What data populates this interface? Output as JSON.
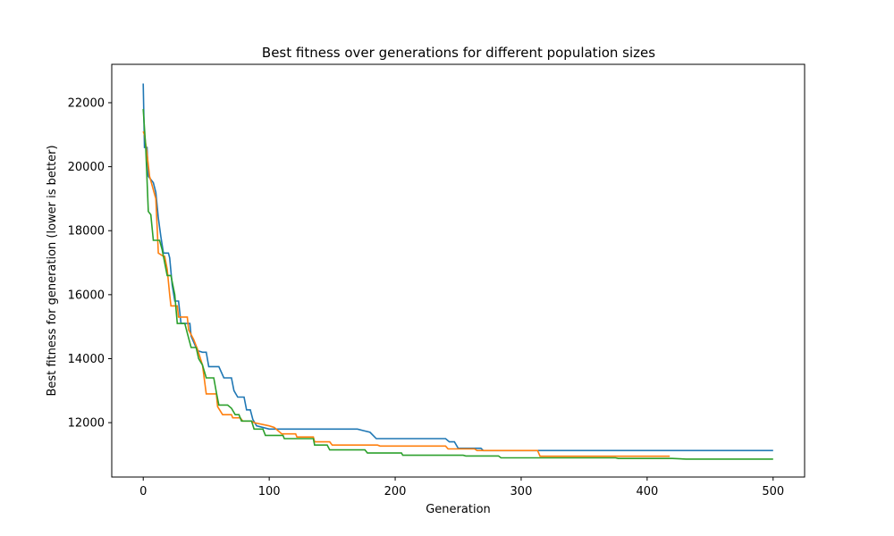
{
  "chart_data": {
    "type": "line",
    "title": "Best fitness over generations for different population sizes",
    "xlabel": "Generation",
    "ylabel": "Best fitness for generation (lower is better)",
    "xlim": [
      -25,
      525
    ],
    "ylim": [
      10300,
      23200
    ],
    "xticks": [
      0,
      100,
      200,
      300,
      400,
      500
    ],
    "yticks": [
      12000,
      14000,
      16000,
      18000,
      20000,
      22000
    ],
    "grid": false,
    "series": [
      {
        "color": "#1f77b4",
        "points": [
          [
            0,
            22600
          ],
          [
            1,
            20600
          ],
          [
            3,
            20600
          ],
          [
            4,
            19700
          ],
          [
            8,
            19500
          ],
          [
            10,
            19200
          ],
          [
            12,
            18400
          ],
          [
            14,
            17800
          ],
          [
            16,
            17300
          ],
          [
            20,
            17300
          ],
          [
            21,
            17150
          ],
          [
            23,
            16300
          ],
          [
            25,
            15800
          ],
          [
            28,
            15800
          ],
          [
            30,
            15100
          ],
          [
            37,
            15100
          ],
          [
            38,
            14700
          ],
          [
            43,
            14250
          ],
          [
            47,
            14200
          ],
          [
            50,
            14200
          ],
          [
            52,
            13750
          ],
          [
            60,
            13750
          ],
          [
            64,
            13400
          ],
          [
            70,
            13400
          ],
          [
            72,
            13000
          ],
          [
            75,
            12800
          ],
          [
            80,
            12800
          ],
          [
            82,
            12400
          ],
          [
            85,
            12400
          ],
          [
            87,
            12100
          ],
          [
            90,
            11900
          ],
          [
            100,
            11800
          ],
          [
            170,
            11800
          ],
          [
            175,
            11750
          ],
          [
            180,
            11700
          ],
          [
            185,
            11500
          ],
          [
            240,
            11500
          ],
          [
            243,
            11400
          ],
          [
            247,
            11400
          ],
          [
            250,
            11200
          ],
          [
            268,
            11200
          ],
          [
            270,
            11130
          ],
          [
            500,
            11130
          ]
        ]
      },
      {
        "color": "#ff7f0e",
        "points": [
          [
            0,
            21100
          ],
          [
            1,
            21000
          ],
          [
            3,
            20400
          ],
          [
            5,
            19700
          ],
          [
            10,
            19000
          ],
          [
            12,
            17300
          ],
          [
            16,
            17200
          ],
          [
            17,
            17200
          ],
          [
            19,
            16800
          ],
          [
            21,
            16000
          ],
          [
            22,
            15650
          ],
          [
            27,
            15650
          ],
          [
            28,
            15300
          ],
          [
            35,
            15300
          ],
          [
            36,
            14900
          ],
          [
            40,
            14600
          ],
          [
            43,
            14300
          ],
          [
            47,
            13800
          ],
          [
            50,
            12900
          ],
          [
            58,
            12900
          ],
          [
            59,
            12500
          ],
          [
            63,
            12250
          ],
          [
            70,
            12250
          ],
          [
            71,
            12150
          ],
          [
            77,
            12150
          ],
          [
            79,
            12050
          ],
          [
            86,
            12050
          ],
          [
            88,
            12000
          ],
          [
            100,
            11900
          ],
          [
            104,
            11850
          ],
          [
            110,
            11650
          ],
          [
            121,
            11650
          ],
          [
            122,
            11550
          ],
          [
            135,
            11550
          ],
          [
            136,
            11400
          ],
          [
            148,
            11400
          ],
          [
            150,
            11300
          ],
          [
            186,
            11300
          ],
          [
            188,
            11270
          ],
          [
            240,
            11270
          ],
          [
            242,
            11180
          ],
          [
            263,
            11180
          ],
          [
            265,
            11130
          ],
          [
            313,
            11130
          ],
          [
            315,
            10950
          ],
          [
            418,
            10950
          ]
        ]
      },
      {
        "color": "#2ca02c",
        "points": [
          [
            0,
            21800
          ],
          [
            2,
            20600
          ],
          [
            4,
            18600
          ],
          [
            6,
            18500
          ],
          [
            8,
            17700
          ],
          [
            13,
            17700
          ],
          [
            15,
            17400
          ],
          [
            19,
            16600
          ],
          [
            22,
            16600
          ],
          [
            25,
            16000
          ],
          [
            27,
            15100
          ],
          [
            33,
            15100
          ],
          [
            35,
            14800
          ],
          [
            38,
            14350
          ],
          [
            42,
            14350
          ],
          [
            44,
            14000
          ],
          [
            47,
            13800
          ],
          [
            50,
            13400
          ],
          [
            56,
            13400
          ],
          [
            58,
            12950
          ],
          [
            60,
            12550
          ],
          [
            67,
            12550
          ],
          [
            70,
            12450
          ],
          [
            73,
            12250
          ],
          [
            76,
            12250
          ],
          [
            78,
            12050
          ],
          [
            86,
            12050
          ],
          [
            88,
            11800
          ],
          [
            95,
            11800
          ],
          [
            97,
            11600
          ],
          [
            111,
            11600
          ],
          [
            112,
            11500
          ],
          [
            135,
            11500
          ],
          [
            136,
            11300
          ],
          [
            146,
            11300
          ],
          [
            148,
            11150
          ],
          [
            176,
            11150
          ],
          [
            178,
            11050
          ],
          [
            205,
            11050
          ],
          [
            206,
            10980
          ],
          [
            254,
            10980
          ],
          [
            256,
            10960
          ],
          [
            282,
            10960
          ],
          [
            284,
            10900
          ],
          [
            375,
            10900
          ],
          [
            377,
            10880
          ],
          [
            420,
            10880
          ],
          [
            431,
            10860
          ],
          [
            500,
            10860
          ]
        ]
      }
    ]
  }
}
